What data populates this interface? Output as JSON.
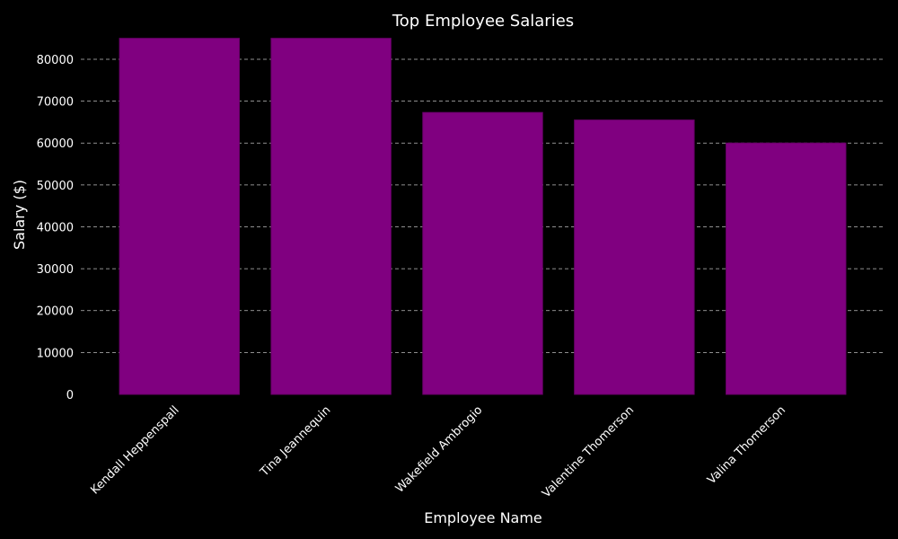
{
  "chart_data": {
    "type": "bar",
    "title": "Top Employee Salaries",
    "xlabel": "Employee Name",
    "ylabel": "Salary ($)",
    "categories": [
      "Kendall Heppenspall",
      "Tina Jeannequin",
      "Wakefield Ambrogio",
      "Valentine Thomerson",
      "Valina Thomerson"
    ],
    "values": [
      85000,
      85000,
      67300,
      65500,
      60000
    ],
    "ylim": [
      0,
      86000
    ],
    "yticks": [
      0,
      10000,
      20000,
      30000,
      40000,
      50000,
      60000,
      70000,
      80000
    ],
    "grid": "y-dashed",
    "bar_color": "#800080",
    "bar_edge_color": "#6a006a",
    "background_color": "#000000",
    "text_color": "#ffffff",
    "grid_color": "#bdbdbd"
  }
}
